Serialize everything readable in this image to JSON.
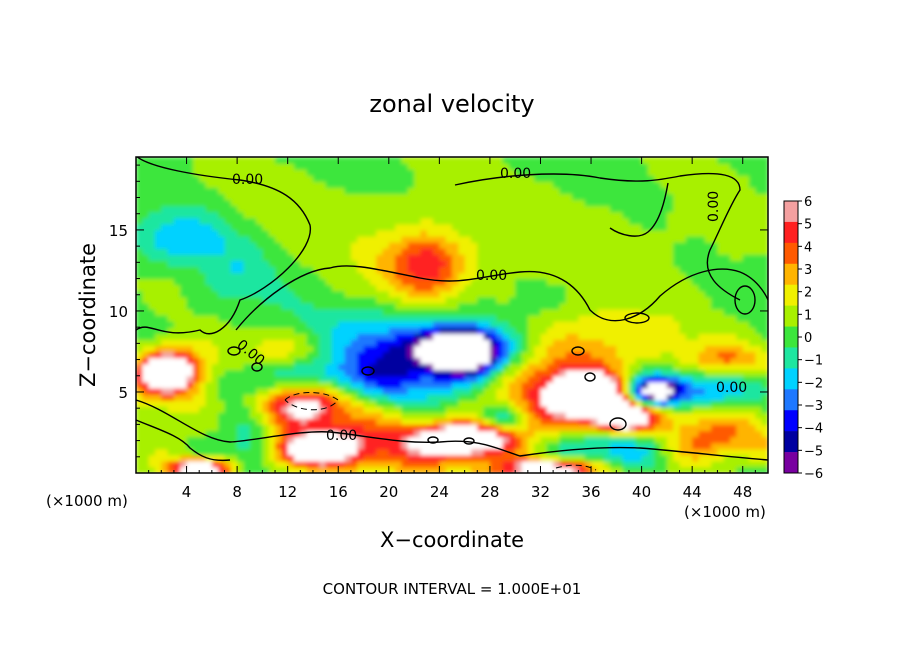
{
  "chart_data": {
    "type": "heatmap",
    "title": "zonal velocity",
    "xlabel": "X−coordinate",
    "ylabel": "Z−coordinate",
    "x_unit_label": "(×1000 m)",
    "x_unit_label_right": "(×1000 m)",
    "xlim": [
      0,
      50
    ],
    "ylim": [
      0,
      19.5
    ],
    "xticks": [
      4,
      8,
      12,
      16,
      20,
      24,
      28,
      32,
      36,
      40,
      44,
      48
    ],
    "yticks": [
      5,
      10,
      15
    ],
    "footer": "CONTOUR INTERVAL = 1.000E+01",
    "contour_labels": [
      "0.00",
      "0.00",
      "0.00",
      "0.00",
      "0.00",
      "0.00",
      "0.00"
    ],
    "colorbar": {
      "min": -6,
      "max": 6,
      "ticks": [
        6,
        5,
        4,
        3,
        2,
        1,
        0,
        -1,
        -2,
        -3,
        -4,
        -5,
        -6
      ],
      "tick_labels": [
        "6",
        "5",
        "4",
        "3",
        "2",
        "1",
        "0",
        "−1",
        "−2",
        "−3",
        "−4",
        "−5",
        "−6"
      ],
      "colors": [
        "#f4a0a0",
        "#ff2020",
        "#ff5a00",
        "#ffb400",
        "#f0f000",
        "#a8f000",
        "#3ce63c",
        "#1ee6a0",
        "#00d2ff",
        "#1e78ff",
        "#0000ff",
        "#0000a0",
        "#7800a0"
      ]
    },
    "regions": [
      {
        "x": 25,
        "z": 10,
        "rx": 40,
        "rz": 18,
        "v": 0.4
      },
      {
        "x": 18,
        "z": 16,
        "rx": 14,
        "rz": 3,
        "v": 0.5
      },
      {
        "x": 40,
        "z": 14,
        "rx": 8,
        "rz": 3,
        "v": 0.7
      },
      {
        "x": 3.5,
        "z": 14.5,
        "rx": 4,
        "rz": 1.6,
        "v": -2.6
      },
      {
        "x": 8,
        "z": 12,
        "rx": 3,
        "rz": 2,
        "v": -1.5
      },
      {
        "x": 23,
        "z": 13,
        "rx": 2.8,
        "rz": 1.8,
        "v": 3.6
      },
      {
        "x": 23,
        "z": 12,
        "rx": 6,
        "rz": 3.5,
        "v": 1.5
      },
      {
        "x": 36,
        "z": 8.5,
        "rx": 10,
        "rz": 1.8,
        "v": 1.6
      },
      {
        "x": 12,
        "z": 7.5,
        "rx": 4,
        "rz": 1.3,
        "v": 2.5
      },
      {
        "x": 22,
        "z": 8.5,
        "rx": 9,
        "rz": 2.2,
        "v": -2.5
      },
      {
        "x": 25,
        "z": 7.5,
        "rx": 7,
        "rz": 1.6,
        "v": -4.2
      },
      {
        "x": 26,
        "z": 7.6,
        "rx": 2.5,
        "rz": 1.3,
        "v": -8
      },
      {
        "x": 15,
        "z": 5.5,
        "rx": 9,
        "rz": 1.6,
        "v": -4.5
      },
      {
        "x": 3,
        "z": 5.8,
        "rx": 4,
        "rz": 2,
        "v": 4.5
      },
      {
        "x": 2.5,
        "z": 6.3,
        "rx": 2,
        "rz": 1.1,
        "v": 8
      },
      {
        "x": 13.5,
        "z": 4.5,
        "rx": 4.2,
        "rz": 1.4,
        "v": 8
      },
      {
        "x": 34,
        "z": 6,
        "rx": 5,
        "rz": 2.5,
        "v": 4.5
      },
      {
        "x": 39,
        "z": 4.2,
        "rx": 8,
        "rz": 1.4,
        "v": 4
      },
      {
        "x": 36,
        "z": 5,
        "rx": 2.5,
        "rz": 1.1,
        "v": 8
      },
      {
        "x": 38.5,
        "z": 3.4,
        "rx": 2.2,
        "rz": 0.8,
        "v": 8
      },
      {
        "x": 44,
        "z": 5,
        "rx": 6,
        "rz": 1.2,
        "v": -4.5
      },
      {
        "x": 41,
        "z": 5,
        "rx": 2,
        "rz": 0.9,
        "v": -8
      },
      {
        "x": 24,
        "z": 1.8,
        "rx": 10,
        "rz": 1.8,
        "v": 4.2
      },
      {
        "x": 26,
        "z": 2.1,
        "rx": 3,
        "rz": 0.8,
        "v": 8
      },
      {
        "x": 14,
        "z": 1.6,
        "rx": 5,
        "rz": 1.5,
        "v": 4
      },
      {
        "x": 14,
        "z": 1.4,
        "rx": 2,
        "rz": 0.7,
        "v": 8
      },
      {
        "x": 5,
        "z": 0.3,
        "rx": 2.5,
        "rz": 0.6,
        "v": 8
      },
      {
        "x": 33,
        "z": 0.3,
        "rx": 4,
        "rz": 0.6,
        "v": 8
      },
      {
        "x": 37,
        "z": 1.5,
        "rx": 5,
        "rz": 1.5,
        "v": -4
      },
      {
        "x": 46,
        "z": 2,
        "rx": 5,
        "rz": 1.5,
        "v": 4
      },
      {
        "x": 47,
        "z": 7,
        "rx": 3,
        "rz": 1,
        "v": 3
      },
      {
        "x": 9,
        "z": 1.5,
        "rx": 2,
        "rz": 1.6,
        "v": -3
      },
      {
        "x": 29,
        "z": 3.5,
        "rx": 2,
        "rz": 0.8,
        "v": -3
      }
    ]
  }
}
